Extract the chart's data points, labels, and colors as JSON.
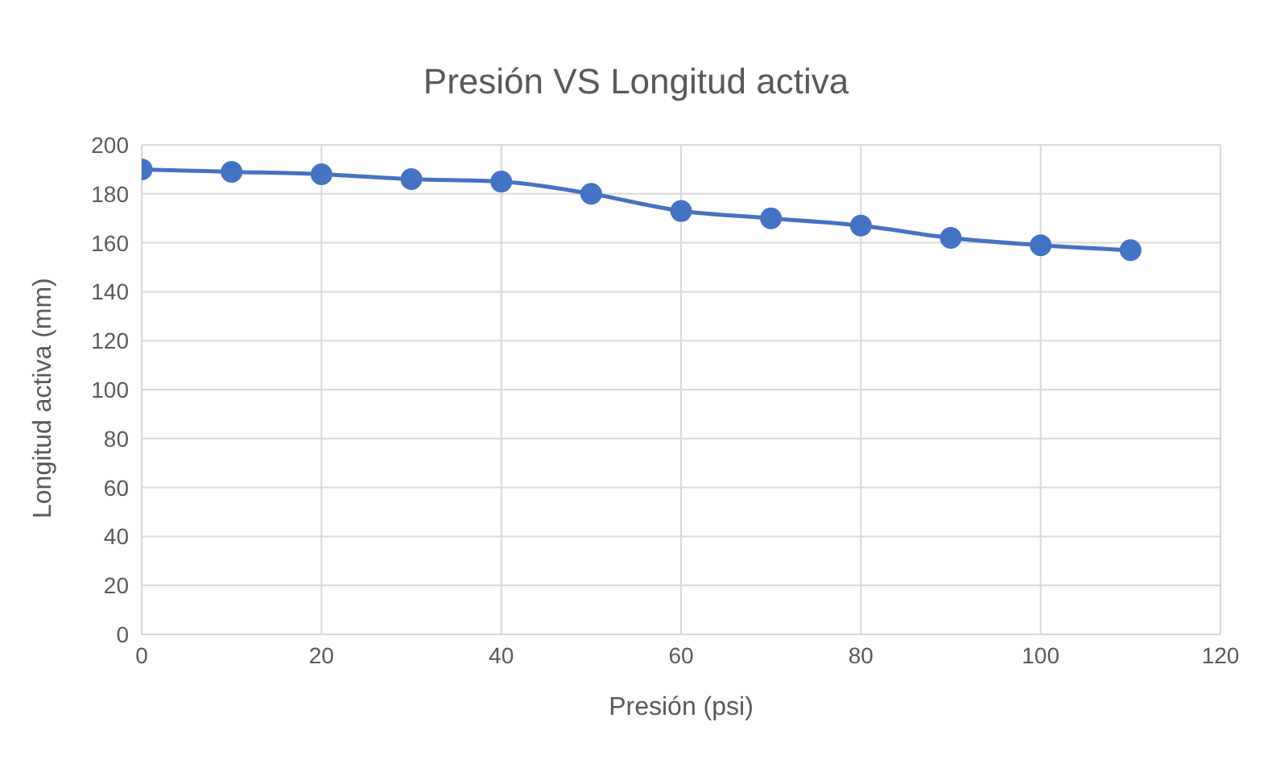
{
  "chart_data": {
    "type": "line",
    "title": "Presión VS Longitud activa",
    "xlabel": "Presión (psi)",
    "ylabel": "Longitud activa (mm)",
    "x": [
      0,
      10,
      20,
      30,
      40,
      50,
      60,
      70,
      80,
      90,
      100,
      110
    ],
    "series": [
      {
        "color": "#4472c4",
        "values": [
          190,
          189,
          188,
          186,
          185,
          180,
          173,
          170,
          167,
          162,
          159,
          157
        ]
      }
    ],
    "xlim": [
      0,
      120
    ],
    "xticks": [
      0,
      20,
      40,
      60,
      80,
      100,
      120
    ],
    "ylim": [
      0,
      200
    ],
    "yticks": [
      0,
      20,
      40,
      60,
      80,
      100,
      120,
      140,
      160,
      180,
      200
    ],
    "grid": true,
    "marker": "circle",
    "line_style": "solid"
  }
}
